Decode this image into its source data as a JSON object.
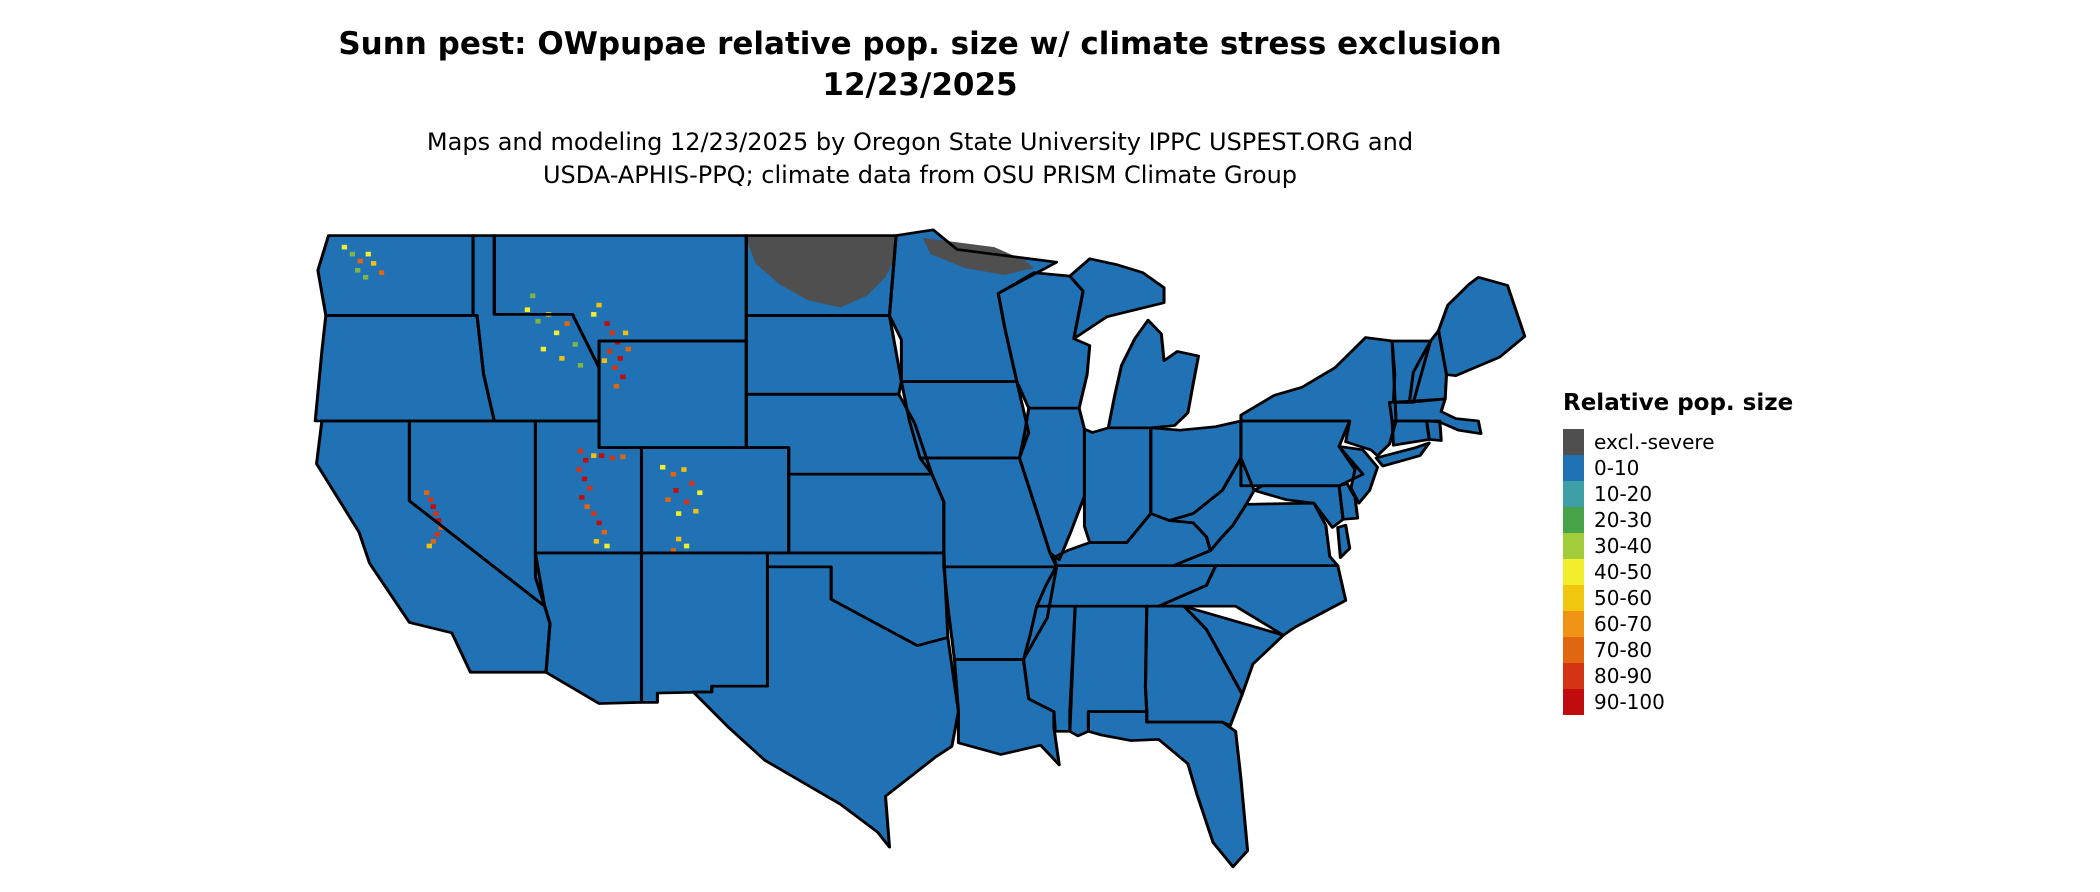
{
  "header": {
    "title_line1": "Sunn pest: OWpupae relative pop. size w/ climate stress exclusion",
    "title_line2": "12/23/2025",
    "subtitle_line1": "Maps and modeling 12/23/2025 by Oregon State University IPPC USPEST.ORG and",
    "subtitle_line2": "USDA-APHIS-PPQ; climate data from OSU PRISM Climate Group"
  },
  "legend": {
    "title": "Relative pop. size",
    "items": [
      {
        "label": "excl.-severe",
        "color": "#4f4f4f"
      },
      {
        "label": "0-10",
        "color": "#2171b5"
      },
      {
        "label": "10-20",
        "color": "#3f9fa7"
      },
      {
        "label": "20-30",
        "color": "#46a347"
      },
      {
        "label": "30-40",
        "color": "#a3cc3a"
      },
      {
        "label": "40-50",
        "color": "#f2ee2c"
      },
      {
        "label": "50-60",
        "color": "#f0c60f"
      },
      {
        "label": "60-70",
        "color": "#ef9415"
      },
      {
        "label": "70-80",
        "color": "#e0660f"
      },
      {
        "label": "80-90",
        "color": "#d23414"
      },
      {
        "label": "90-100",
        "color": "#c00c0c"
      }
    ]
  },
  "map": {
    "colors": {
      "map-fill": "#2171b5",
      "map-border": "#000000",
      "map-exclusion": "#4f4f4f",
      "page-bg": "#ffffff"
    },
    "hotspot_palette": [
      "#c00c0c",
      "#e0660f",
      "#f0c00f",
      "#f2ee2c",
      "#7ab648",
      "#d23414"
    ],
    "hotspots": [
      [
        48,
        38,
        3
      ],
      [
        54,
        44,
        4
      ],
      [
        60,
        50,
        1
      ],
      [
        66,
        44,
        3
      ],
      [
        58,
        58,
        4
      ],
      [
        70,
        52,
        2
      ],
      [
        76,
        60,
        1
      ],
      [
        64,
        64,
        4
      ],
      [
        186,
        92,
        3
      ],
      [
        194,
        102,
        4
      ],
      [
        202,
        96,
        2
      ],
      [
        208,
        112,
        3
      ],
      [
        216,
        104,
        1
      ],
      [
        222,
        122,
        4
      ],
      [
        198,
        126,
        3
      ],
      [
        212,
        134,
        2
      ],
      [
        226,
        140,
        4
      ],
      [
        190,
        80,
        4
      ],
      [
        236,
        96,
        3
      ],
      [
        240,
        88,
        2
      ],
      [
        246,
        104,
        0
      ],
      [
        250,
        112,
        5
      ],
      [
        254,
        120,
        0
      ],
      [
        248,
        128,
        5
      ],
      [
        256,
        134,
        0
      ],
      [
        252,
        142,
        5
      ],
      [
        258,
        150,
        0
      ],
      [
        253,
        158,
        1
      ],
      [
        262,
        126,
        1
      ],
      [
        244,
        136,
        2
      ],
      [
        260,
        112,
        2
      ],
      [
        226,
        214,
        5
      ],
      [
        230,
        222,
        0
      ],
      [
        225,
        230,
        5
      ],
      [
        229,
        238,
        0
      ],
      [
        233,
        246,
        5
      ],
      [
        227,
        254,
        0
      ],
      [
        231,
        262,
        1
      ],
      [
        236,
        218,
        2
      ],
      [
        242,
        218,
        0
      ],
      [
        250,
        220,
        5
      ],
      [
        258,
        219,
        1
      ],
      [
        236,
        268,
        5
      ],
      [
        240,
        276,
        0
      ],
      [
        244,
        284,
        1
      ],
      [
        238,
        292,
        2
      ],
      [
        246,
        296,
        3
      ],
      [
        288,
        228,
        3
      ],
      [
        296,
        234,
        1
      ],
      [
        304,
        230,
        2
      ],
      [
        310,
        242,
        5
      ],
      [
        298,
        248,
        0
      ],
      [
        292,
        256,
        1
      ],
      [
        306,
        258,
        5
      ],
      [
        313,
        266,
        2
      ],
      [
        300,
        268,
        3
      ],
      [
        316,
        250,
        3
      ],
      [
        300,
        290,
        2
      ],
      [
        306,
        296,
        3
      ],
      [
        296,
        300,
        1
      ],
      [
        110,
        250,
        1
      ],
      [
        113,
        256,
        5
      ],
      [
        115,
        262,
        0
      ],
      [
        117,
        268,
        5
      ],
      [
        119,
        274,
        0
      ],
      [
        121,
        280,
        1
      ],
      [
        118,
        286,
        5
      ],
      [
        115,
        292,
        1
      ],
      [
        112,
        296,
        2
      ]
    ]
  }
}
